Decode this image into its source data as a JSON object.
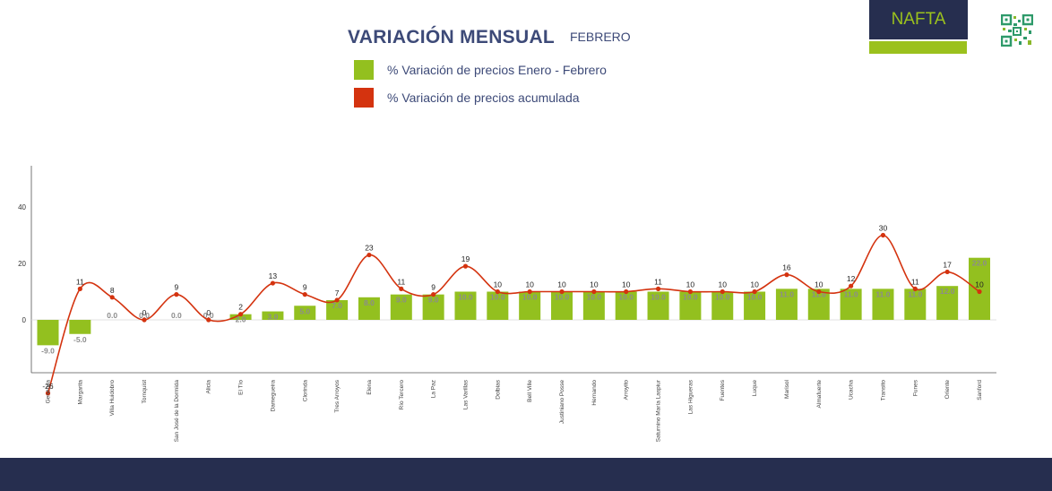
{
  "header": {
    "title": "VARIACIÓN MENSUAL",
    "subtitle": "FEBRERO",
    "badge": "NAFTA",
    "qr_icon": "qr-code-icon"
  },
  "colors": {
    "bar": "#93c01f",
    "line": "#d4330f",
    "navy": "#262e4f",
    "text": "#3d4a78"
  },
  "chart_data": {
    "type": "bar",
    "title": "VARIACIÓN MENSUAL",
    "categories": [
      "Genérica",
      "Margarita",
      "Villa Huidobro",
      "Tornquist",
      "San José de la Dormida",
      "Alicia",
      "El Tío",
      "Damegueira",
      "Clorinda",
      "Tres Arroyos",
      "Elena",
      "Río Tercero",
      "La Paz",
      "Las Varillas",
      "Dolbias",
      "Bell Ville",
      "Justiniano Posse",
      "Hernando",
      "Arroyito",
      "Saturnino María Laspiur",
      "Las Higueras",
      "Fuentes",
      "Luque",
      "Marisol",
      "Almafuerte",
      "Ucacha",
      "Transito",
      "Funes",
      "Oriente",
      "Sanford"
    ],
    "series": [
      {
        "name": "% Variación de precios Enero - Febrero",
        "type": "bar",
        "values": [
          -9.0,
          -5.0,
          0.0,
          0.0,
          0.0,
          0.0,
          2.0,
          3.0,
          5.0,
          7.0,
          8.0,
          9.0,
          9.0,
          10.0,
          10.0,
          10.0,
          10.0,
          10.0,
          10.0,
          10.0,
          10.0,
          10.0,
          10.0,
          11.0,
          11.0,
          11.0,
          11.0,
          11.0,
          12.0,
          22.0
        ],
        "labels": [
          "-9.0",
          "-5.0",
          "0.0",
          "0.0",
          "0.0",
          "0.0",
          "2.0",
          "3.0",
          "5.0",
          "7.0",
          "8.0",
          "9.0",
          "9.0",
          "10.0",
          "10.0",
          "10.0",
          "10.0",
          "10.0",
          "10.0",
          "10.0",
          "10.0",
          "10.0",
          "10.0",
          "11.0",
          "11.0",
          "11.0",
          "11.0",
          "11.0",
          "12.0",
          "22.0"
        ]
      },
      {
        "name": "% Variación de precios acumulada",
        "type": "line",
        "values": [
          -26,
          11,
          8,
          0,
          9,
          0,
          2,
          13,
          9,
          7,
          23,
          11,
          9,
          19,
          10,
          10,
          10,
          10,
          10,
          11,
          10,
          10,
          10,
          16,
          10,
          12,
          30,
          11,
          17,
          10
        ],
        "labels": [
          "-26",
          "11",
          "8",
          "0",
          "9",
          "0",
          "2",
          "13",
          "9",
          "7",
          "23",
          "11",
          "9",
          "19",
          "10",
          "10",
          "10",
          "10",
          "10",
          "11",
          "10",
          "10",
          "10",
          "16",
          "10",
          "12",
          "30",
          "11",
          "17",
          "10"
        ]
      }
    ],
    "yticks": [
      0,
      20,
      40
    ],
    "ylim": [
      -18,
      55
    ],
    "grid": false,
    "legend": "top-center"
  }
}
